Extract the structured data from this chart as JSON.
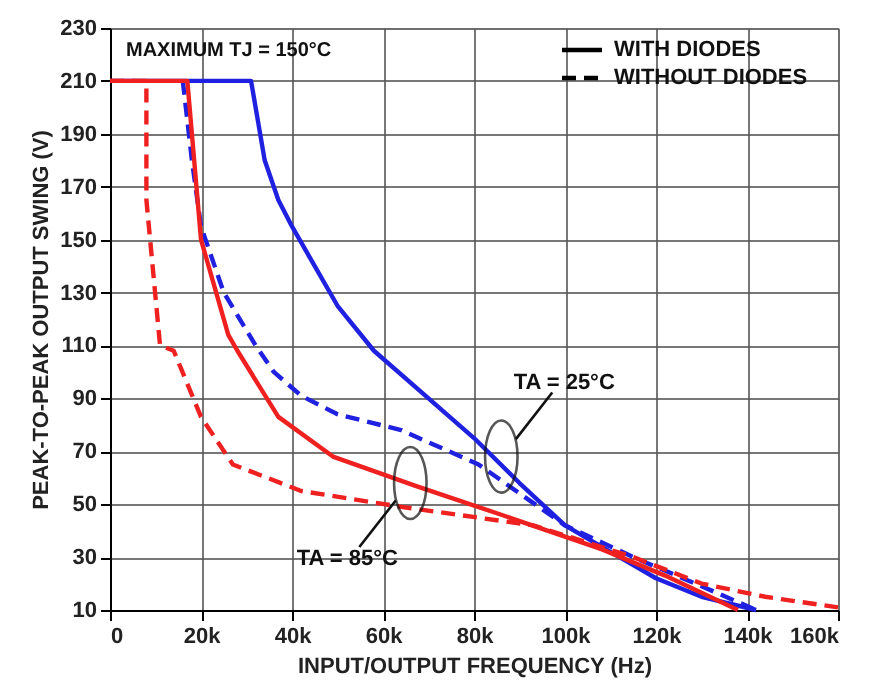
{
  "chart_data": {
    "type": "line",
    "xlabel": "INPUT/OUTPUT FREQUENCY (Hz)",
    "ylabel": "PEAK-TO-PEAK OUTPUT SWING (V)",
    "xlim": [
      0,
      160000
    ],
    "ylim": [
      10,
      230
    ],
    "xticks": [
      0,
      {
        "value": 20000,
        "label": "20k"
      },
      {
        "value": 40000,
        "label": "40k"
      },
      {
        "value": 60000,
        "label": "60k"
      },
      {
        "value": 80000,
        "label": "80k"
      },
      {
        "value": 100000,
        "label": "100k"
      },
      {
        "value": 120000,
        "label": "120k"
      },
      {
        "value": 140000,
        "label": "140k"
      },
      {
        "value": 160000,
        "label": "160k"
      }
    ],
    "yticks": [
      10,
      30,
      50,
      70,
      90,
      110,
      130,
      150,
      170,
      190,
      210,
      230
    ],
    "grid": true,
    "marker": "none",
    "annotations": [
      "MAXIMUM TJ = 150°C",
      "WITH DIODES",
      "WITHOUT DIODES",
      {
        "text": "TA = 25°C",
        "x": 86000,
        "y": 68
      },
      {
        "text": "TA = 85°C",
        "x": 66000,
        "y": 58
      }
    ],
    "series": [
      {
        "color": "#2020e0",
        "line_style": "solid",
        "x": [
          0,
          31000,
          32000,
          34000,
          37000,
          40000,
          45000,
          50000,
          58000,
          70000,
          80000,
          90000,
          100000,
          110000,
          120000,
          130000,
          142000
        ],
        "values": [
          210,
          210,
          200,
          180,
          165,
          155,
          140,
          125,
          108,
          90,
          75,
          58,
          42,
          32,
          22,
          15,
          10
        ]
      },
      {
        "color": "#2020e0",
        "line_style": "dashed",
        "x": [
          16000,
          18000,
          20000,
          25000,
          32000,
          36000,
          42000,
          50000,
          64000,
          81000,
          100000,
          115000,
          130000,
          142000
        ],
        "values": [
          210,
          180,
          155,
          130,
          110,
          100,
          91,
          84,
          78,
          65,
          42,
          30,
          19,
          10
        ]
      },
      {
        "color": "#ee2020",
        "line_style": "solid",
        "x": [
          0,
          17000,
          18000,
          20000,
          26000,
          28000,
          37000,
          49000,
          67000,
          86000,
          108000,
          122000,
          138000
        ],
        "values": [
          210,
          210,
          190,
          150,
          114,
          108,
          83,
          68,
          57,
          46,
          33,
          23,
          10
        ]
      },
      {
        "color": "#ee2020",
        "line_style": "dashed",
        "x": [
          0,
          8000,
          8000,
          11000,
          14000,
          20000,
          27000,
          42000,
          64000,
          93000,
          115000,
          130000,
          144000,
          160000
        ],
        "values": [
          210,
          210,
          165,
          110,
          108,
          83,
          65,
          55,
          49,
          42,
          30,
          20,
          15,
          11
        ]
      }
    ]
  }
}
